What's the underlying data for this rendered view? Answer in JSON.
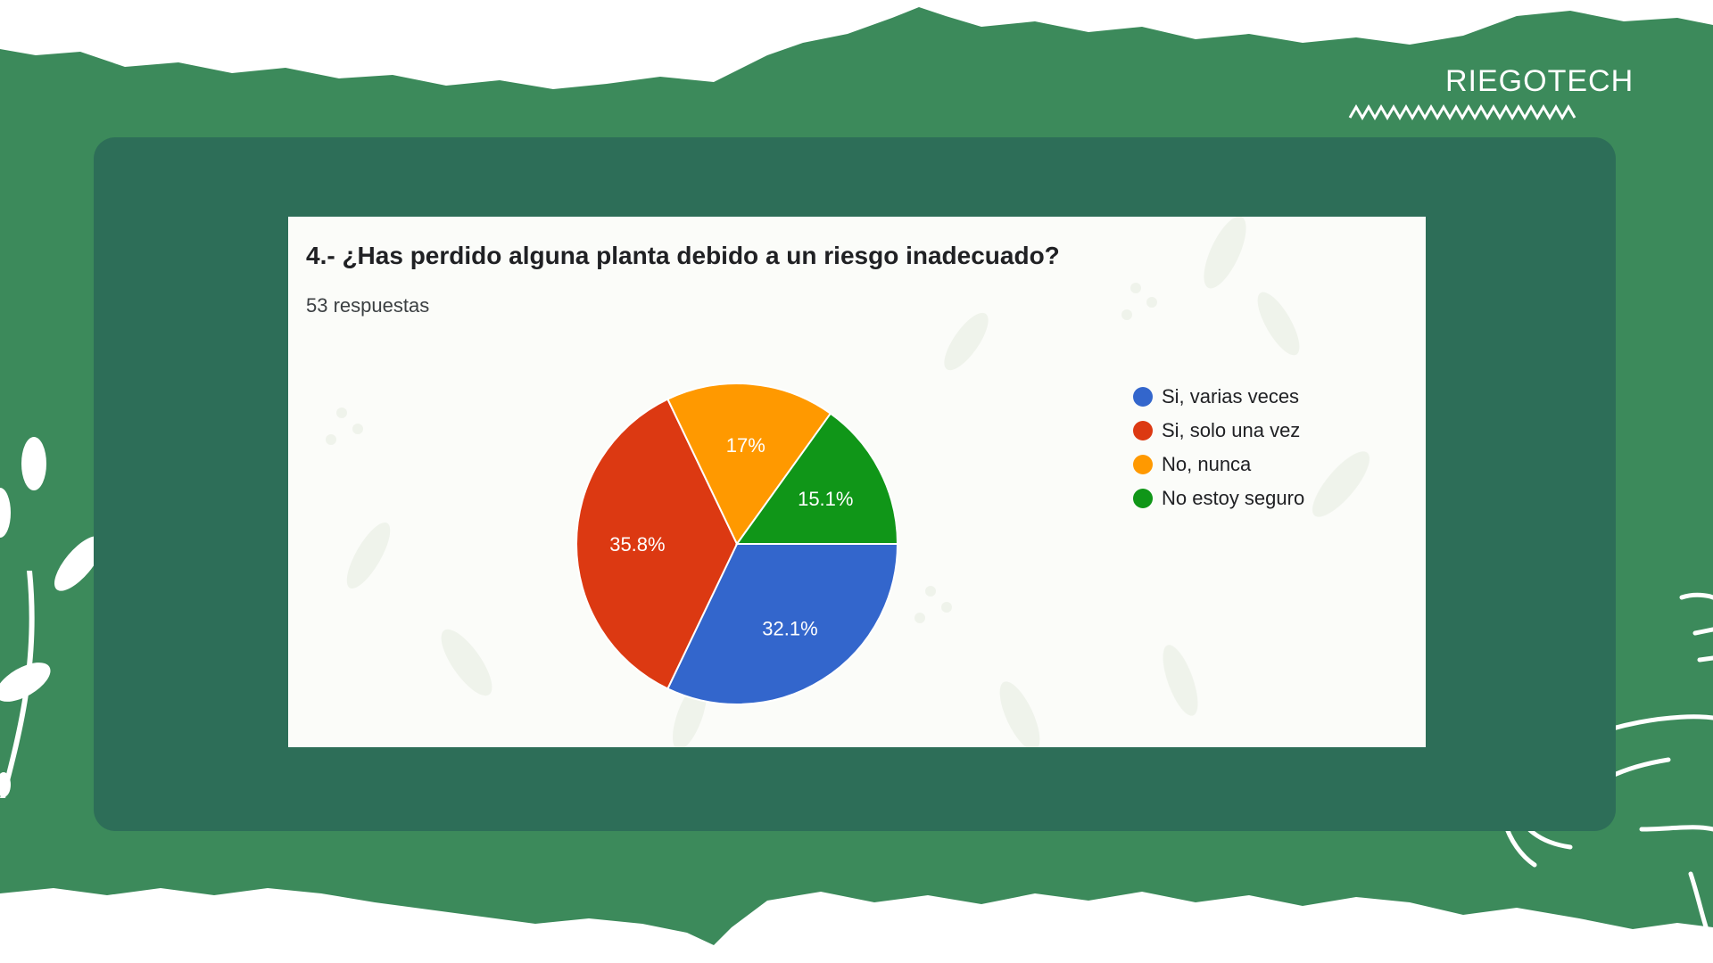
{
  "brand": {
    "name": "RIEGOTECH"
  },
  "colors": {
    "page_green": "#3c8a5b",
    "panel_green": "#2d6e58",
    "card_bg": "#fbfcf9"
  },
  "chart_data": {
    "type": "pie",
    "title": "4.- ¿Has perdido alguna planta debido a un riesgo inadecuado?",
    "subtitle": "53 respuestas",
    "legend_position": "right",
    "slices": [
      {
        "label": "Si, varias veces",
        "value": 32.1,
        "display": "32.1%",
        "color": "#3366cc"
      },
      {
        "label": "Si, solo una vez",
        "value": 35.8,
        "display": "35.8%",
        "color": "#dc3912"
      },
      {
        "label": "No, nunca",
        "value": 17.0,
        "display": "17%",
        "color": "#ff9900"
      },
      {
        "label": "No estoy seguro",
        "value": 15.1,
        "display": "15.1%",
        "color": "#109618"
      }
    ]
  }
}
